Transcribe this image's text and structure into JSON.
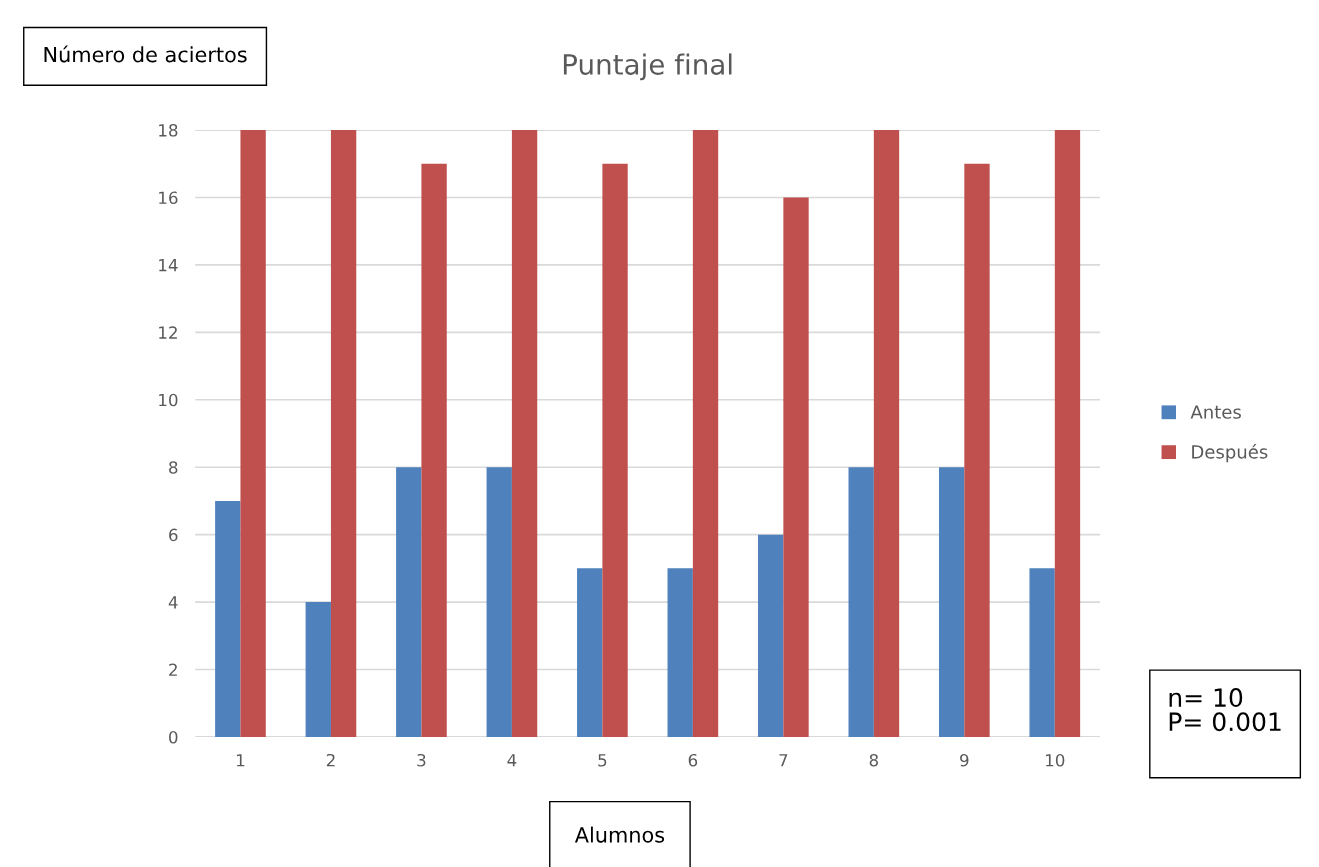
{
  "chart_data": {
    "type": "bar",
    "title": "Puntaje final",
    "xlabel": "Alumnos",
    "ylabel": "Número de aciertos",
    "categories": [
      "1",
      "2",
      "3",
      "4",
      "5",
      "6",
      "7",
      "8",
      "9",
      "10"
    ],
    "series": [
      {
        "name": "Antes",
        "color": "#4f81bd",
        "values": [
          7,
          4,
          8,
          8,
          5,
          5,
          6,
          8,
          8,
          5
        ]
      },
      {
        "name": "Después",
        "color": "#c0504d",
        "values": [
          18,
          18,
          17,
          18,
          17,
          18,
          16,
          18,
          17,
          18
        ]
      }
    ],
    "ylim": [
      0,
      18
    ],
    "yticks": [
      0,
      2,
      4,
      6,
      8,
      10,
      12,
      14,
      16,
      18
    ],
    "grid": "y",
    "legend": "right",
    "annotations": [
      "n= 10",
      "P= 0.001"
    ]
  }
}
